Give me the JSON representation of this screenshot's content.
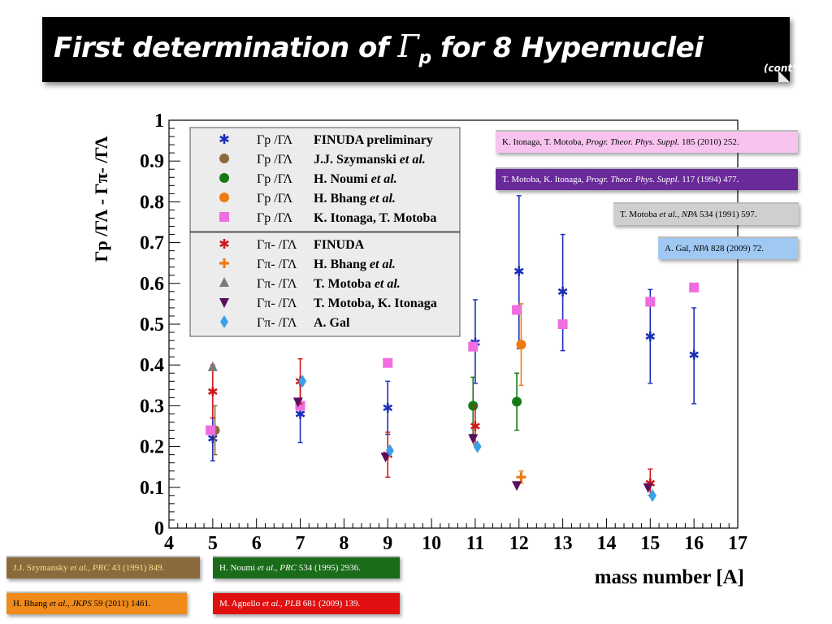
{
  "title": {
    "prefix": "First determination of ",
    "gamma": "Γ",
    "gamma_sub": "p",
    "suffix": " for 8 Hypernuclei",
    "note": "(cont’d)"
  },
  "references": [
    {
      "id": "itonaga",
      "authors": "K. Itonaga, T. Motoba, ",
      "journal": "Progr. Theor. Phys. Suppl.",
      "rest": " 185 (2010) 252.",
      "bg": "#f9c3f0",
      "fg": "#000000"
    },
    {
      "id": "motoba-itonaga",
      "authors": "T. Motoba, K. Itonaga, ",
      "journal": "Progr. Theor. Phys. Suppl.",
      "rest": " 117 (1994) 477.",
      "bg": "#6a2a9a",
      "fg": "#ffffff"
    },
    {
      "id": "motoba",
      "authors": "T. Motoba ",
      "journal": "et al., NPA",
      "rest": " 534 (1991) 597.",
      "bg": "#cfcfcf",
      "fg": "#000000"
    },
    {
      "id": "gal",
      "authors": "A. Gal, ",
      "journal": "NPA",
      "rest": " 828 (2009) 72.",
      "bg": "#9fc8f2",
      "fg": "#000000"
    },
    {
      "id": "szymansky",
      "authors": "J.J. Szymansky ",
      "journal": "et al., PRC",
      "rest": " 43 (1991) 849.",
      "bg": "#8a6a3c",
      "fg": "#f5e08a"
    },
    {
      "id": "noumi",
      "authors": "H. Noumi ",
      "journal": "et al., PRC",
      "rest": " 534 (1995) 2936.",
      "bg": "#1a6b1a",
      "fg": "#ffffff"
    },
    {
      "id": "bhang",
      "authors": "H. Bhang ",
      "journal": "et al., JKPS",
      "rest": " 59 (2011) 1461.",
      "bg": "#f08a1a",
      "fg": "#000000"
    },
    {
      "id": "agnello",
      "authors": "M. Agnello ",
      "journal": "et al., PLB",
      "rest": " 681 (2009) 139.",
      "bg": "#e01010",
      "fg": "#ffffff"
    }
  ],
  "chart_data": {
    "type": "scatter",
    "xlabel": "mass number [A]",
    "ylabel": "Γp /ΓΛ - Γπ- /ΓΛ",
    "xlim": [
      4,
      17
    ],
    "ylim": [
      0,
      1
    ],
    "x_ticks": [
      "4",
      "5",
      "6",
      "7",
      "8",
      "9",
      "10",
      "11",
      "12",
      "13",
      "14",
      "15",
      "16",
      "17"
    ],
    "y_ticks": [
      "0",
      "0.1",
      "0.2",
      "0.3",
      "0.4",
      "0.5",
      "0.6",
      "0.7",
      "0.8",
      "0.9",
      "1"
    ],
    "grid": false,
    "legend_position": "top-left",
    "legend_groups": [
      [
        {
          "series": "finuda-prelim",
          "ratio": "Γp /ΓΛ",
          "source": "FINUDA preliminary",
          "etal": ""
        },
        {
          "series": "szymanski",
          "ratio": "Γp /ΓΛ",
          "source": "J.J. Szymanski ",
          "etal": "et al."
        },
        {
          "series": "noumi",
          "ratio": "Γp /ΓΛ",
          "source": "H. Noumi ",
          "etal": "et al."
        },
        {
          "series": "bhang-p",
          "ratio": "Γp /ΓΛ",
          "source": "H. Bhang ",
          "etal": "et al."
        },
        {
          "series": "itonaga",
          "ratio": "Γp /ΓΛ",
          "source": "K. Itonaga, T. Motoba",
          "etal": ""
        }
      ],
      [
        {
          "series": "finuda",
          "ratio": "Γπ- /ΓΛ",
          "source": "FINUDA",
          "etal": ""
        },
        {
          "series": "bhang-pi",
          "ratio": "Γπ- /ΓΛ",
          "source": "H. Bhang ",
          "etal": "et al."
        },
        {
          "series": "motoba",
          "ratio": "Γπ- /ΓΛ",
          "source": "T. Motoba ",
          "etal": "et al."
        },
        {
          "series": "motoba-itonaga",
          "ratio": "Γπ- /ΓΛ",
          "source": "T. Motoba, K. Itonaga",
          "etal": ""
        },
        {
          "series": "gal",
          "ratio": "Γπ- /ΓΛ",
          "source": "A. Gal",
          "etal": ""
        }
      ]
    ],
    "series": [
      {
        "key": "finuda-prelim",
        "marker": "star",
        "color": "#1a2fb8",
        "points": [
          {
            "x": 5,
            "y": 0.22,
            "lo": 0.165,
            "hi": 0.27
          },
          {
            "x": 7,
            "y": 0.28,
            "lo": 0.21,
            "hi": 0.36
          },
          {
            "x": 9,
            "y": 0.295,
            "lo": 0.23,
            "hi": 0.36
          },
          {
            "x": 11,
            "y": 0.455,
            "lo": 0.355,
            "hi": 0.56
          },
          {
            "x": 12,
            "y": 0.63,
            "lo": 0.44,
            "hi": 0.815
          },
          {
            "x": 13,
            "y": 0.58,
            "lo": 0.435,
            "hi": 0.72
          },
          {
            "x": 15,
            "y": 0.47,
            "lo": 0.355,
            "hi": 0.585
          },
          {
            "x": 16,
            "y": 0.425,
            "lo": 0.305,
            "hi": 0.54
          }
        ]
      },
      {
        "key": "szymanski",
        "marker": "circle",
        "color": "#8b6a3e",
        "points": [
          {
            "x": 5.05,
            "y": 0.24,
            "lo": 0.18,
            "hi": 0.3
          }
        ]
      },
      {
        "key": "noumi",
        "marker": "circle",
        "color": "#157a15",
        "points": [
          {
            "x": 10.95,
            "y": 0.3,
            "lo": 0.23,
            "hi": 0.37
          },
          {
            "x": 11.95,
            "y": 0.31,
            "lo": 0.24,
            "hi": 0.38
          }
        ]
      },
      {
        "key": "bhang-p",
        "marker": "circle",
        "color": "#f07a10",
        "points": [
          {
            "x": 12.05,
            "y": 0.45,
            "lo": 0.35,
            "hi": 0.55
          }
        ]
      },
      {
        "key": "itonaga",
        "marker": "square",
        "color": "#f06de0",
        "points": [
          {
            "x": 4.95,
            "y": 0.24
          },
          {
            "x": 7,
            "y": 0.3
          },
          {
            "x": 9,
            "y": 0.405
          },
          {
            "x": 10.95,
            "y": 0.445
          },
          {
            "x": 11.95,
            "y": 0.535
          },
          {
            "x": 13,
            "y": 0.5
          },
          {
            "x": 15,
            "y": 0.555
          },
          {
            "x": 16,
            "y": 0.59
          }
        ]
      },
      {
        "key": "finuda",
        "marker": "star",
        "color": "#d01818",
        "points": [
          {
            "x": 5,
            "y": 0.335,
            "lo": 0.27,
            "hi": 0.4
          },
          {
            "x": 7,
            "y": 0.36,
            "lo": 0.305,
            "hi": 0.415
          },
          {
            "x": 9,
            "y": 0.18,
            "lo": 0.125,
            "hi": 0.235
          },
          {
            "x": 11,
            "y": 0.25,
            "lo": 0.205,
            "hi": 0.3
          },
          {
            "x": 15,
            "y": 0.11,
            "lo": 0.08,
            "hi": 0.145
          }
        ]
      },
      {
        "key": "bhang-pi",
        "marker": "plus",
        "color": "#f07a10",
        "points": [
          {
            "x": 12.05,
            "y": 0.125,
            "lo": 0.11,
            "hi": 0.14
          }
        ]
      },
      {
        "key": "motoba",
        "marker": "triangle",
        "color": "#7a7a7a",
        "points": [
          {
            "x": 5,
            "y": 0.395
          }
        ]
      },
      {
        "key": "motoba-itonaga",
        "marker": "down-triangle",
        "color": "#5a0d5a",
        "points": [
          {
            "x": 6.95,
            "y": 0.31
          },
          {
            "x": 8.95,
            "y": 0.175
          },
          {
            "x": 10.95,
            "y": 0.22
          },
          {
            "x": 11.95,
            "y": 0.105
          },
          {
            "x": 14.95,
            "y": 0.1
          }
        ]
      },
      {
        "key": "gal",
        "marker": "diamond",
        "color": "#3aa0e8",
        "points": [
          {
            "x": 7.05,
            "y": 0.36
          },
          {
            "x": 9.05,
            "y": 0.19
          },
          {
            "x": 11.05,
            "y": 0.2
          },
          {
            "x": 15.05,
            "y": 0.08
          }
        ]
      }
    ]
  }
}
